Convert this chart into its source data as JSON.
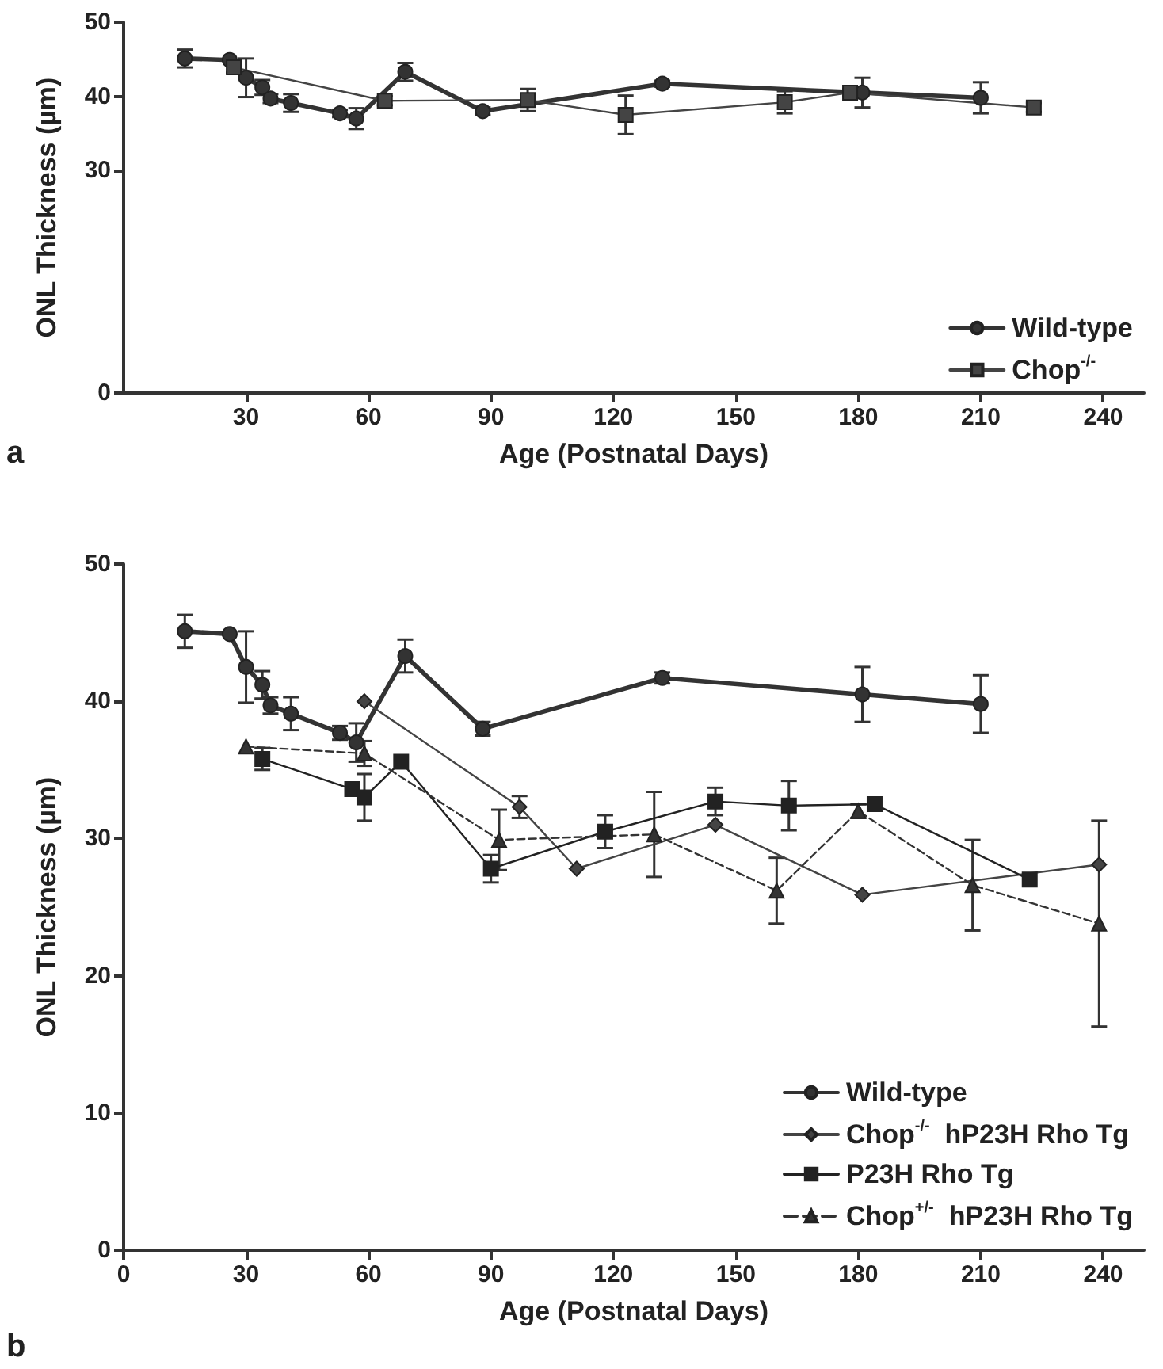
{
  "chart_data": [
    {
      "type": "line",
      "xlabel": "Age (Postnatal Days)",
      "ylabel": "ONL Thickness (µm)",
      "annotations": [
        "a"
      ],
      "xlim": [
        0,
        250
      ],
      "xticks": [
        30,
        60,
        90,
        120,
        150,
        180,
        210,
        240
      ],
      "ylim": [
        0,
        50
      ],
      "yticks": [
        0,
        30,
        40,
        50
      ],
      "grid": false,
      "legend": "bottom right",
      "series": [
        {
          "name": "Wild-type",
          "color": "#333333",
          "marker": "circle",
          "line_style": "solid",
          "x": [
            15,
            26,
            30,
            34,
            36,
            41,
            53,
            57,
            69,
            88,
            132,
            181,
            210
          ],
          "values": [
            45.1,
            44.9,
            42.5,
            41.2,
            39.7,
            39.1,
            37.7,
            37.0,
            43.3,
            38.0,
            41.7,
            40.5,
            39.8
          ],
          "errors": [
            1.2,
            null,
            2.6,
            1.0,
            0.6,
            1.2,
            0.5,
            1.4,
            1.2,
            0.5,
            0.4,
            2.0,
            2.1
          ]
        },
        {
          "name": "Chop$^{-/-}$",
          "color": "#444444",
          "marker": "square",
          "line_style": "solid",
          "x": [
            27,
            64,
            99,
            123,
            162,
            178,
            223
          ],
          "values": [
            43.9,
            39.4,
            39.5,
            37.5,
            39.2,
            40.5,
            38.5
          ],
          "errors": [
            0.7,
            0.6,
            1.5,
            2.6,
            1.5,
            0.5,
            0.6
          ]
        }
      ]
    },
    {
      "type": "line",
      "xlabel": "Age (Postnatal Days)",
      "ylabel": "ONL Thickness (µm)",
      "annotations": [
        "b"
      ],
      "xlim": [
        0,
        250
      ],
      "xticks": [
        0,
        30,
        60,
        90,
        120,
        150,
        180,
        210,
        240
      ],
      "ylim": [
        0,
        50
      ],
      "yticks": [
        0,
        10,
        20,
        30,
        40,
        50
      ],
      "grid": false,
      "legend": "bottom right",
      "series": [
        {
          "name": "Wild-type",
          "color": "#333333",
          "marker": "circle",
          "line_style": "solid",
          "x": [
            15,
            26,
            30,
            34,
            36,
            41,
            53,
            57,
            69,
            88,
            132,
            181,
            210
          ],
          "values": [
            45.1,
            44.9,
            42.5,
            41.2,
            39.7,
            39.1,
            37.7,
            37.0,
            43.3,
            38.0,
            41.7,
            40.5,
            39.8
          ],
          "errors": [
            1.2,
            null,
            2.6,
            1.0,
            0.6,
            1.2,
            0.5,
            1.4,
            1.2,
            0.5,
            0.4,
            2.0,
            2.1
          ]
        },
        {
          "name": "Chop$^{-/-}$  hP23H Rho Tg",
          "color": "#444444",
          "marker": "diamond",
          "line_style": "solid",
          "x": [
            59,
            97,
            111,
            145,
            181,
            239
          ],
          "values": [
            40.0,
            32.3,
            27.8,
            31.0,
            25.9,
            28.1
          ],
          "errors": [
            null,
            0.8,
            null,
            null,
            null,
            null
          ]
        },
        {
          "name": "P23H Rho Tg",
          "color": "#222222",
          "marker": "square",
          "line_style": "solid",
          "x": [
            34,
            56,
            59,
            68,
            90,
            118,
            145,
            163,
            184,
            222
          ],
          "values": [
            35.8,
            33.6,
            33.0,
            35.6,
            27.8,
            30.5,
            32.7,
            32.4,
            32.5,
            27.0
          ],
          "errors": [
            0.8,
            null,
            1.7,
            null,
            1.0,
            1.2,
            1.0,
            1.8,
            null,
            null
          ]
        },
        {
          "name": "Chop$^{+/-}$  hP23H Rho Tg",
          "color": "#333333",
          "marker": "triangle",
          "line_style": "dashed",
          "x": [
            30,
            59,
            92,
            130,
            160,
            180,
            208,
            239
          ],
          "values": [
            36.7,
            36.2,
            29.9,
            30.3,
            26.2,
            32.0,
            26.6,
            23.8
          ],
          "errors": [
            null,
            0.9,
            2.2,
            3.1,
            2.4,
            0.5,
            3.3,
            7.5
          ]
        }
      ]
    }
  ]
}
